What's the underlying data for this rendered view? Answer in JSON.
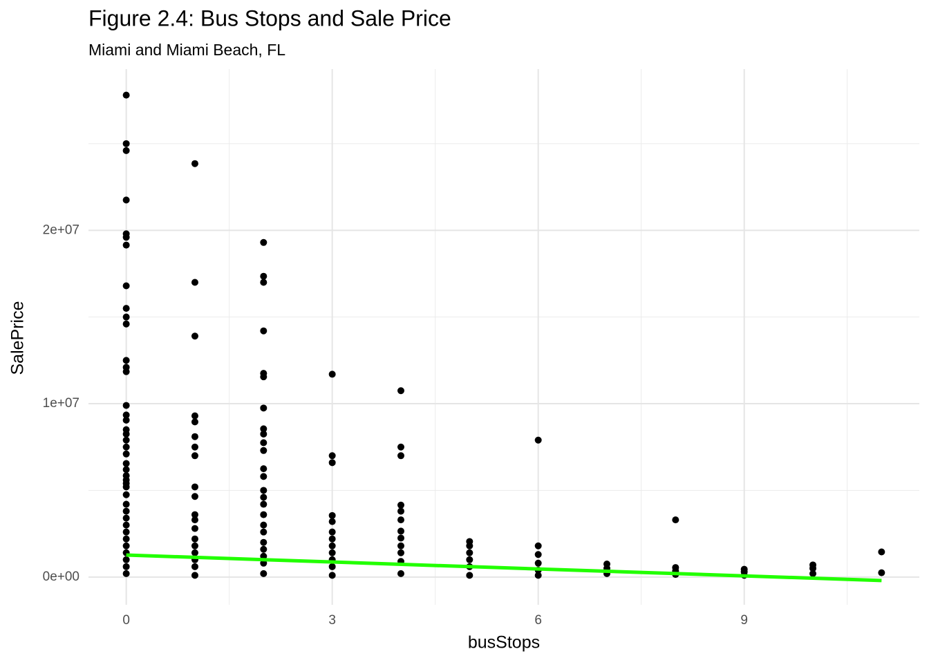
{
  "chart_data": {
    "type": "scatter",
    "title": "Figure 2.4: Bus Stops and Sale Price",
    "subtitle": "Miami and Miami Beach, FL",
    "x_label": "busStops",
    "y_label": "SalePrice",
    "xlim": [
      -0.55,
      11.55
    ],
    "ylim": [
      -1600000,
      29300000
    ],
    "xticks": [
      0,
      3,
      6,
      9
    ],
    "yticks": [
      {
        "value": 0,
        "label": "0e+00"
      },
      {
        "value": 10000000,
        "label": "1e+07"
      },
      {
        "value": 20000000,
        "label": "2e+07"
      }
    ],
    "minor_xticks": [
      1.5,
      4.5,
      7.5,
      10.5
    ],
    "minor_yticks": [
      5000000,
      15000000,
      25000000
    ],
    "grid": true,
    "color": "#000000",
    "groups": [
      {
        "x": 0,
        "values": [
          27800000,
          25000000,
          24600000,
          21750000,
          19800000,
          19600000,
          19150000,
          16800000,
          15500000,
          15000000,
          14600000,
          12500000,
          12100000,
          11850000,
          9900000,
          9350000,
          9050000,
          8500000,
          8250000,
          7900000,
          7500000,
          7100000,
          6550000,
          6200000,
          5850000,
          5600000,
          5400000,
          5200000,
          4750000,
          4200000,
          3800000,
          3400000,
          3000000,
          2600000,
          2200000,
          1800000,
          1400000,
          1000000,
          600000,
          200000
        ]
      },
      {
        "x": 1,
        "values": [
          23850000,
          17000000,
          13900000,
          9300000,
          8950000,
          8100000,
          7500000,
          7000000,
          5200000,
          4650000,
          3600000,
          3300000,
          2800000,
          2200000,
          1800000,
          1400000,
          1000000,
          600000,
          100000
        ]
      },
      {
        "x": 2,
        "values": [
          19300000,
          17350000,
          17000000,
          14200000,
          11750000,
          11550000,
          9750000,
          8550000,
          8250000,
          7750000,
          7300000,
          6250000,
          5800000,
          5000000,
          4600000,
          4200000,
          3600000,
          3000000,
          2600000,
          2000000,
          1600000,
          1200000,
          800000,
          200000
        ]
      },
      {
        "x": 3,
        "values": [
          11700000,
          7000000,
          6600000,
          3550000,
          3200000,
          2600000,
          2200000,
          1800000,
          1400000,
          1000000,
          600000,
          100000
        ]
      },
      {
        "x": 4,
        "values": [
          10750000,
          7500000,
          7000000,
          4150000,
          3800000,
          3300000,
          2650000,
          2250000,
          1800000,
          1400000,
          900000,
          200000
        ]
      },
      {
        "x": 5,
        "values": [
          2050000,
          1800000,
          1400000,
          1000000,
          600000,
          100000
        ]
      },
      {
        "x": 6,
        "values": [
          7900000,
          1800000,
          1300000,
          800000,
          400000,
          100000
        ]
      },
      {
        "x": 7,
        "values": [
          750000,
          500000,
          200000
        ]
      },
      {
        "x": 8,
        "values": [
          3300000,
          550000,
          350000,
          150000
        ]
      },
      {
        "x": 9,
        "values": [
          450000,
          300000,
          100000
        ]
      },
      {
        "x": 10,
        "values": [
          700000,
          500000,
          200000
        ]
      },
      {
        "x": 11,
        "values": [
          1450000,
          250000
        ]
      }
    ],
    "trend": {
      "x": [
        0,
        11
      ],
      "values": [
        1270000,
        -200000
      ],
      "color": "#22ff00"
    }
  }
}
